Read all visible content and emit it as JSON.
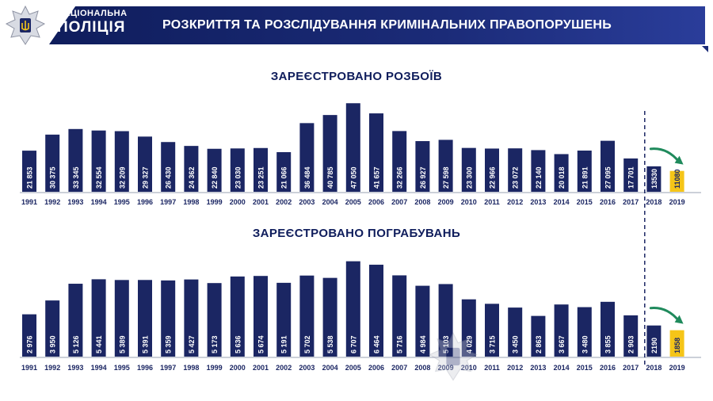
{
  "header": {
    "brand_top": "НАЦІОНАЛЬНА",
    "brand_bottom": "ПОЛІЦІЯ",
    "title": "РОЗКРИТТЯ ТА РОЗСЛІДУВАННЯ КРИМІНАЛЬНИХ ПРАВОПОРУШЕНЬ"
  },
  "colors": {
    "navy": "#1b2663",
    "highlight": "#f5c518",
    "trend_arrow": "#1f8a5c"
  },
  "chart_data": [
    {
      "type": "bar",
      "title": "ЗАРЕЄСТРОВАНО РОЗБОЇВ",
      "categories": [
        "1991",
        "1992",
        "1993",
        "1994",
        "1995",
        "1996",
        "1997",
        "1998",
        "1999",
        "2000",
        "2001",
        "2002",
        "2003",
        "2004",
        "2005",
        "2006",
        "2007",
        "2008",
        "2009",
        "2010",
        "2011",
        "2012",
        "2013",
        "2014",
        "2015",
        "2016",
        "2017",
        "2018",
        "2019"
      ],
      "values": [
        21853,
        30375,
        33345,
        32554,
        32209,
        29327,
        26430,
        24362,
        22840,
        23030,
        23251,
        21066,
        36484,
        40785,
        47050,
        41657,
        32266,
        26927,
        27598,
        23300,
        22966,
        23072,
        22140,
        20018,
        21891,
        27095,
        17701,
        13530,
        11080
      ],
      "labels": [
        "21 853",
        "30 375",
        "33 345",
        "32 554",
        "32 209",
        "29 327",
        "26 430",
        "24 362",
        "22 840",
        "23 030",
        "23 251",
        "21 066",
        "36 484",
        "40 785",
        "47 050",
        "41 657",
        "32 266",
        "26 927",
        "27 598",
        "23 300",
        "22 966",
        "23 072",
        "22 140",
        "20 018",
        "21 891",
        "27 095",
        "17 701",
        "13530",
        "11080"
      ],
      "highlight_category": "2019",
      "ylim": [
        0,
        48000
      ]
    },
    {
      "type": "bar",
      "title": "ЗАРЕЄСТРОВАНО  ПОГРАБУВАНЬ",
      "categories": [
        "1991",
        "1992",
        "1993",
        "1994",
        "1995",
        "1996",
        "1997",
        "1998",
        "1999",
        "2000",
        "2001",
        "2002",
        "2003",
        "2004",
        "2005",
        "2006",
        "2007",
        "2008",
        "2009",
        "2010",
        "2011",
        "2012",
        "2013",
        "2014",
        "2015",
        "2016",
        "2017",
        "2018",
        "2019"
      ],
      "values": [
        2976,
        3950,
        5126,
        5441,
        5389,
        5391,
        5359,
        5427,
        5173,
        5636,
        5674,
        5191,
        5702,
        5538,
        6707,
        6464,
        5716,
        4984,
        5103,
        4029,
        3715,
        3450,
        2863,
        3667,
        3480,
        3855,
        2903,
        2190,
        1858
      ],
      "labels": [
        "2 976",
        "3 950",
        "5 126",
        "5 441",
        "5 389",
        "5 391",
        "5 359",
        "5 427",
        "5 173",
        "5 636",
        "5 674",
        "5 191",
        "5 702",
        "5 538",
        "6 707",
        "6 464",
        "5 716",
        "4 984",
        "5 103",
        "4 029",
        "3 715",
        "3 450",
        "2 863",
        "3 667",
        "3 480",
        "3 855",
        "2 903",
        "2190",
        "1858"
      ],
      "highlight_category": "2019",
      "ylim": [
        0,
        6800
      ]
    }
  ]
}
